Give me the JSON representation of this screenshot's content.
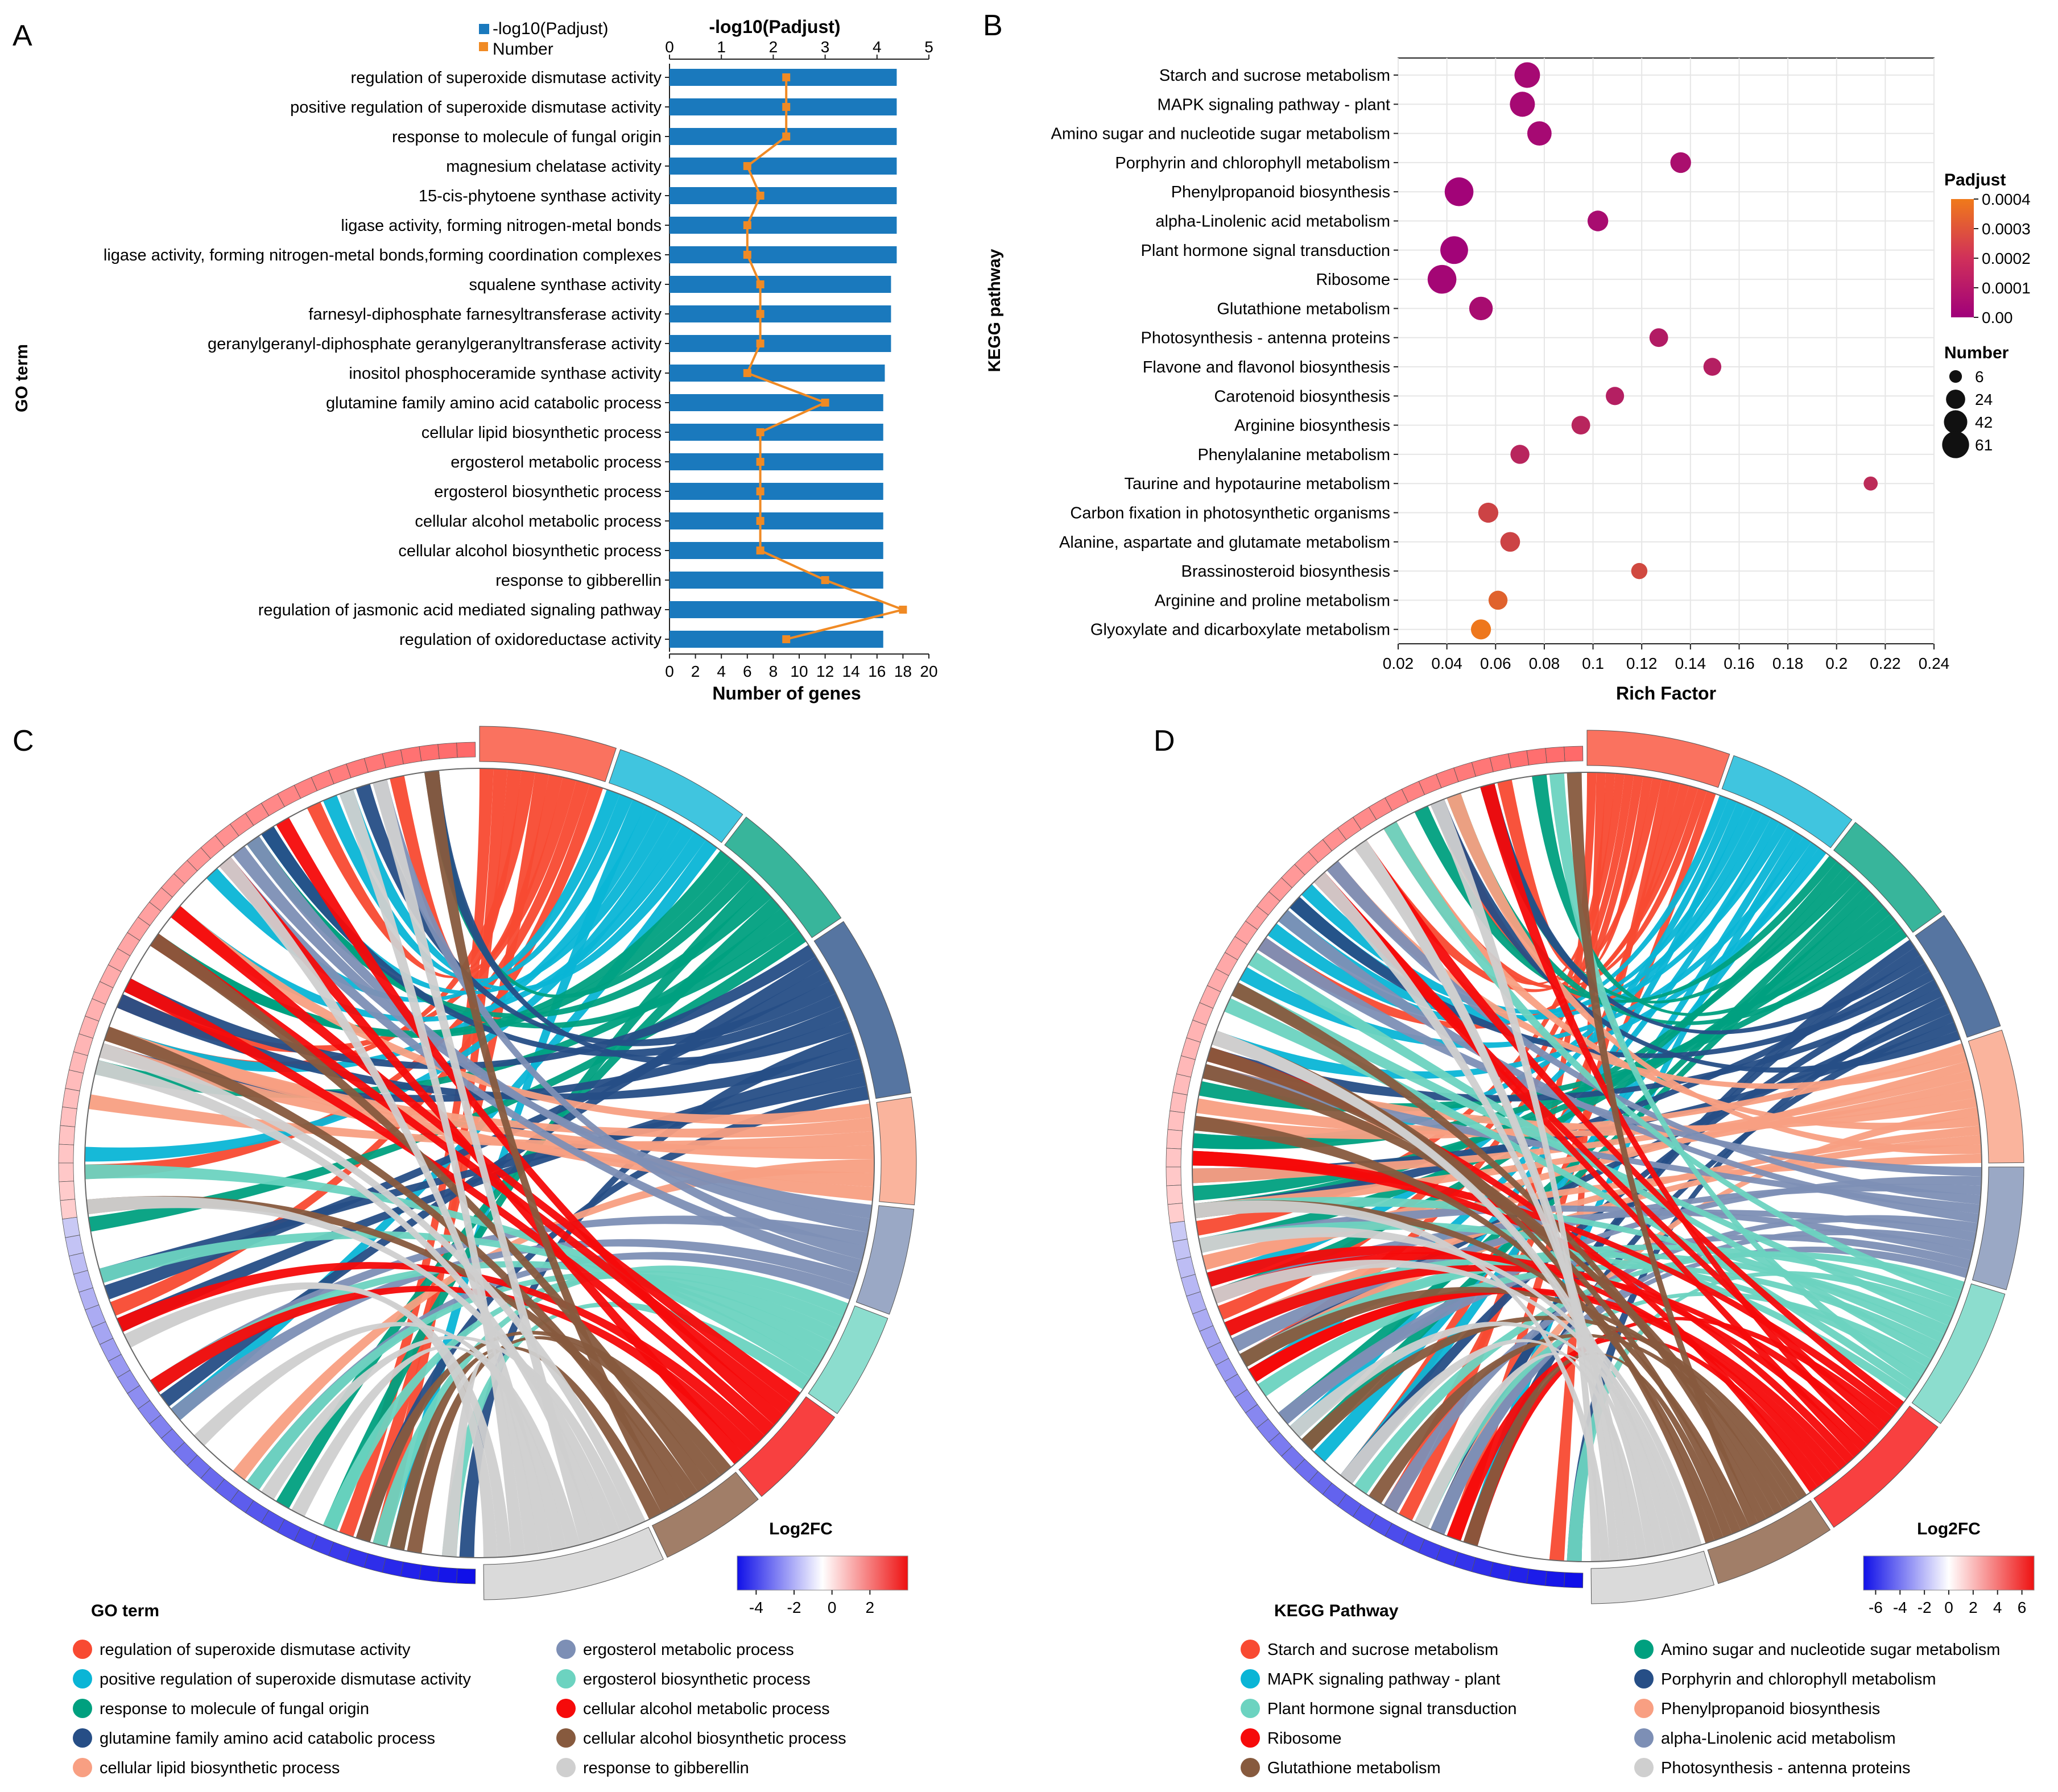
{
  "panels": {
    "A": "A",
    "B": "B",
    "C": "C",
    "D": "D"
  },
  "colors": {
    "bar": "#1a79bd",
    "line": "#f08a24",
    "grid": "#e6e6e6",
    "low": "#1010e8",
    "mid": "#ffffff",
    "high": "#ee1111",
    "padj_low": "#a0007a",
    "padj_high": "#f07a1a"
  },
  "chart_data": [
    {
      "id": "A",
      "type": "bar",
      "title": "-log10(Padjust)",
      "xlabel": "Number of genes",
      "ylabel": "GO term",
      "legend": [
        "-log10(Padjust)",
        "Number"
      ],
      "legend_position": "top-left",
      "top_axis_ticks": [
        "0",
        "1",
        "2",
        "3",
        "4",
        "5"
      ],
      "bottom_axis_ticks": [
        "0",
        "2",
        "4",
        "6",
        "8",
        "10",
        "12",
        "14",
        "16",
        "18",
        "20"
      ],
      "xlim_top": [
        0,
        5
      ],
      "xlim_bottom": [
        0,
        20
      ],
      "categories": [
        "regulation of superoxide dismutase activity",
        "positive regulation of superoxide dismutase activity",
        "response to molecule of fungal origin",
        "magnesium chelatase activity",
        "15-cis-phytoene synthase activity",
        "ligase activity, forming nitrogen-metal bonds",
        "ligase activity, forming nitrogen-metal bonds,forming coordination complexes",
        "squalene synthase activity",
        "farnesyl-diphosphate farnesyltransferase activity",
        "geranylgeranyl-diphosphate geranylgeranyltransferase activity",
        "inositol phosphoceramide synthase activity",
        "glutamine family amino acid catabolic process",
        "cellular lipid biosynthetic process",
        "ergosterol metabolic process",
        "ergosterol biosynthetic process",
        "cellular alcohol metabolic process",
        "cellular alcohol biosynthetic process",
        "response to gibberellin",
        "regulation of jasmonic acid mediated signaling pathway",
        "regulation of oxidoreductase activity"
      ],
      "series": [
        {
          "name": "-log10(Padjust)",
          "values": [
            4.38,
            4.38,
            4.38,
            4.38,
            4.38,
            4.38,
            4.38,
            4.27,
            4.27,
            4.27,
            4.15,
            4.12,
            4.12,
            4.12,
            4.12,
            4.12,
            4.12,
            4.12,
            4.12,
            4.12
          ]
        },
        {
          "name": "Number",
          "values": [
            9,
            9,
            9,
            6,
            7,
            6,
            6,
            7,
            7,
            7,
            6,
            12,
            7,
            7,
            7,
            7,
            7,
            12,
            18,
            9
          ]
        }
      ]
    },
    {
      "id": "B",
      "type": "scatter",
      "xlabel": "Rich Factor",
      "ylabel": "KEGG pathway",
      "xlim": [
        0.02,
        0.24
      ],
      "x_ticks": [
        "0.02",
        "0.04",
        "0.06",
        "0.08",
        "0.1",
        "0.12",
        "0.14",
        "0.16",
        "0.18",
        "0.2",
        "0.22",
        "0.24"
      ],
      "colorbar": {
        "title": "Padjust",
        "ticks": [
          "0.0004",
          "0.0003",
          "0.0002",
          "0.0001",
          "0.00"
        ],
        "range": [
          0,
          0.0004
        ]
      },
      "size_legend": {
        "title": "Number",
        "labels": [
          "6",
          "24",
          "42",
          "61"
        ],
        "values": [
          6,
          24,
          42,
          61
        ]
      },
      "categories": [
        "Starch and sucrose metabolism",
        "MAPK signaling pathway - plant",
        "Amino sugar and nucleotide sugar metabolism",
        "Porphyrin and chlorophyll metabolism",
        "Phenylpropanoid biosynthesis",
        "alpha-Linolenic acid metabolism",
        "Plant hormone signal transduction",
        "Ribosome",
        "Glutathione metabolism",
        "Photosynthesis - antenna proteins",
        "Flavone and flavonol biosynthesis",
        "Carotenoid biosynthesis",
        "Arginine biosynthesis",
        "Phenylalanine metabolism",
        "Taurine and hypotaurine metabolism",
        "Carbon fixation in photosynthetic organisms",
        "Alanine, aspartate and glutamate metabolism",
        "Brassinosteroid biosynthesis",
        "Arginine and proline metabolism",
        "Glyoxylate and dicarboxylate metabolism"
      ],
      "x": [
        0.073,
        0.071,
        0.078,
        0.136,
        0.045,
        0.102,
        0.043,
        0.038,
        0.054,
        0.127,
        0.149,
        0.109,
        0.095,
        0.07,
        0.214,
        0.057,
        0.066,
        0.119,
        0.061,
        0.054
      ],
      "size": [
        40,
        38,
        35,
        22,
        55,
        22,
        50,
        55,
        32,
        16,
        14,
        15,
        16,
        17,
        6,
        20,
        19,
        10,
        17,
        20
      ],
      "padjust": [
        3e-05,
        3e-05,
        3e-05,
        5e-05,
        1e-05,
        4e-05,
        1e-05,
        2e-05,
        4e-05,
        9e-05,
        0.0001,
        0.0001,
        0.00012,
        0.00012,
        0.00014,
        0.00022,
        0.00022,
        0.00024,
        0.00032,
        0.00039
      ]
    },
    {
      "id": "C",
      "type": "chord",
      "legend_title": "GO term",
      "colorbar_title": "Log2FC",
      "colorbar_ticks": [
        "-4",
        "-2",
        "0",
        "2"
      ],
      "colorbar_range": [
        -5,
        4
      ],
      "terms": [
        {
          "name": "regulation of superoxide dismutase activity",
          "color": "#f84a32",
          "count": 9
        },
        {
          "name": "positive regulation of superoxide dismutase activity",
          "color": "#0ab5d6",
          "count": 9
        },
        {
          "name": "response to molecule of fungal origin",
          "color": "#00a07f",
          "count": 9
        },
        {
          "name": "glutamine family amino acid catabolic process",
          "color": "#264e86",
          "count": 12
        },
        {
          "name": "cellular lipid biosynthetic process",
          "color": "#f89f82",
          "count": 7
        },
        {
          "name": "ergosterol metabolic process",
          "color": "#7d8fb5",
          "count": 7
        },
        {
          "name": "ergosterol biosynthetic process",
          "color": "#6cd3c0",
          "count": 7
        },
        {
          "name": "cellular alcohol metabolic process",
          "color": "#f60a0a",
          "count": 7
        },
        {
          "name": "cellular alcohol biosynthetic process",
          "color": "#875a3e",
          "count": 7
        },
        {
          "name": "response to gibberellin",
          "color": "#cfcfcf",
          "count": 12
        }
      ],
      "legend_columns": [
        [
          "regulation of superoxide dismutase activity",
          "positive regulation of superoxide dismutase activity",
          "response to molecule of fungal origin",
          "glutamine family amino acid catabolic process",
          "cellular lipid biosynthetic process"
        ],
        [
          "ergosterol metabolic process",
          "ergosterol biosynthetic process",
          "cellular alcohol metabolic process",
          "cellular alcohol biosynthetic process",
          "response to gibberellin"
        ]
      ]
    },
    {
      "id": "D",
      "type": "chord",
      "legend_title": "KEGG Pathway",
      "colorbar_title": "Log2FC",
      "colorbar_ticks": [
        "-6",
        "-4",
        "-2",
        "0",
        "2",
        "4",
        "6"
      ],
      "colorbar_range": [
        -7,
        7
      ],
      "terms": [
        {
          "name": "Starch and sucrose metabolism",
          "color": "#f84a32",
          "count": 14
        },
        {
          "name": "MAPK signaling pathway - plant",
          "color": "#0ab5d6",
          "count": 13
        },
        {
          "name": "Amino sugar and nucleotide sugar metabolism",
          "color": "#00a07f",
          "count": 12
        },
        {
          "name": "Porphyrin and chlorophyll metabolism",
          "color": "#264e86",
          "count": 12
        },
        {
          "name": "Phenylpropanoid biosynthesis",
          "color": "#f89f82",
          "count": 13
        },
        {
          "name": "alpha-Linolenic acid metabolism",
          "color": "#7d8fb5",
          "count": 12
        },
        {
          "name": "Plant hormone signal transduction",
          "color": "#6cd3c0",
          "count": 14
        },
        {
          "name": "Ribosome",
          "color": "#f60a0a",
          "count": 14
        },
        {
          "name": "Glutathione metabolism",
          "color": "#875a3e",
          "count": 12
        },
        {
          "name": "Photosynthesis - antenna proteins",
          "color": "#cfcfcf",
          "count": 12
        }
      ],
      "legend_columns": [
        [
          "Starch and sucrose metabolism",
          "MAPK signaling pathway - plant",
          "Plant hormone signal transduction",
          "Ribosome",
          "Glutathione metabolism"
        ],
        [
          "Amino sugar and nucleotide sugar metabolism",
          "Porphyrin and chlorophyll metabolism",
          "Phenylpropanoid biosynthesis",
          "alpha-Linolenic acid metabolism",
          "Photosynthesis - antenna proteins"
        ]
      ]
    }
  ]
}
